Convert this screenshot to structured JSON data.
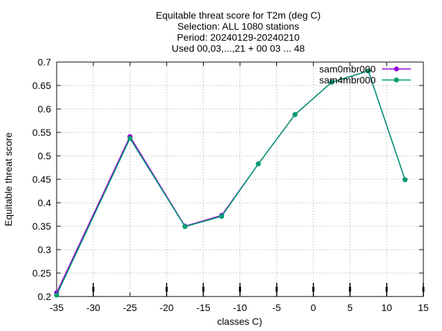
{
  "chart_data": {
    "type": "line",
    "title_lines": [
      "Equitable threat score  for T2m (deg C)",
      "Selection: ALL    1080 stations",
      "Period: 20240129-20240210",
      "Used 00,03,...,21 + 00 03 ... 48"
    ],
    "xlabel": "classes C)",
    "ylabel": "Equitable threat score",
    "xlim": [
      -35,
      15
    ],
    "ylim": [
      0.2,
      0.7
    ],
    "x_ticks": [
      -35,
      -30,
      -25,
      -20,
      -15,
      -10,
      -5,
      0,
      5,
      10,
      15
    ],
    "x_tick_labels": [
      "-35",
      "-30",
      "-25",
      "-20",
      "-15",
      "-10",
      "-5",
      "0",
      "5",
      "10",
      "15"
    ],
    "y_ticks": [
      0.2,
      0.25,
      0.3,
      0.35,
      0.4,
      0.45,
      0.5,
      0.55,
      0.6,
      0.65,
      0.7
    ],
    "y_tick_labels": [
      "0.2",
      "0.25",
      "0.3",
      "0.35",
      "0.4",
      "0.45",
      "0.5",
      "0.55",
      "0.6",
      "0.65",
      "0.7"
    ],
    "grid": true,
    "legend_position": "top-right",
    "class_markers_x": [
      -30,
      -20,
      -15,
      -10,
      -5,
      0,
      5,
      10,
      15
    ],
    "series": [
      {
        "name": "sam0mbr000",
        "color": "#9400d3",
        "marker": "circle",
        "x": [
          -35,
          -25,
          -17.5,
          -12.5,
          -7.5,
          -2.5,
          2.5,
          7.5,
          12.5
        ],
        "y": [
          0.208,
          0.541,
          0.35,
          0.373,
          0.483,
          0.588,
          0.657,
          0.681,
          0.449
        ]
      },
      {
        "name": "sam4mbr000",
        "color": "#009e73",
        "marker": "circle",
        "x": [
          -35,
          -25,
          -17.5,
          -12.5,
          -7.5,
          -2.5,
          2.5,
          7.5,
          12.5
        ],
        "y": [
          0.203,
          0.537,
          0.349,
          0.371,
          0.483,
          0.588,
          0.657,
          0.681,
          0.449
        ]
      }
    ]
  }
}
